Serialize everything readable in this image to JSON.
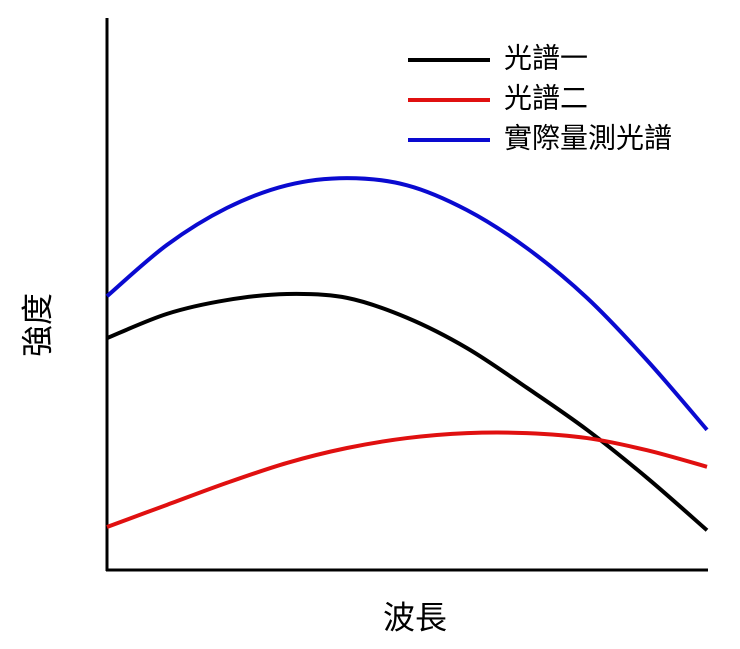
{
  "chart_data": {
    "type": "line",
    "x_label": "波長",
    "y_label": "強度",
    "x": [
      0,
      10,
      20,
      30,
      40,
      50,
      60,
      70,
      80,
      90,
      100
    ],
    "xlim": [
      0,
      100
    ],
    "ylim": [
      0,
      100
    ],
    "legend": "upper right",
    "series": [
      {
        "name": "光譜一",
        "color": "#000000",
        "values": [
          42.0,
          46.4,
          48.9,
          50.0,
          49.3,
          45.7,
          40.2,
          33.0,
          25.4,
          16.7,
          7.2
        ]
      },
      {
        "name": "光譜二",
        "color": "#e01010",
        "values": [
          7.8,
          11.8,
          15.8,
          19.4,
          22.1,
          23.9,
          24.8,
          24.8,
          23.9,
          21.7,
          18.7
        ]
      },
      {
        "name": "實際量測光譜",
        "color": "#0a0ad0",
        "values": [
          49.6,
          58.9,
          65.6,
          69.7,
          71.0,
          69.7,
          65.2,
          58.3,
          49.3,
          38.0,
          25.4
        ]
      }
    ]
  }
}
